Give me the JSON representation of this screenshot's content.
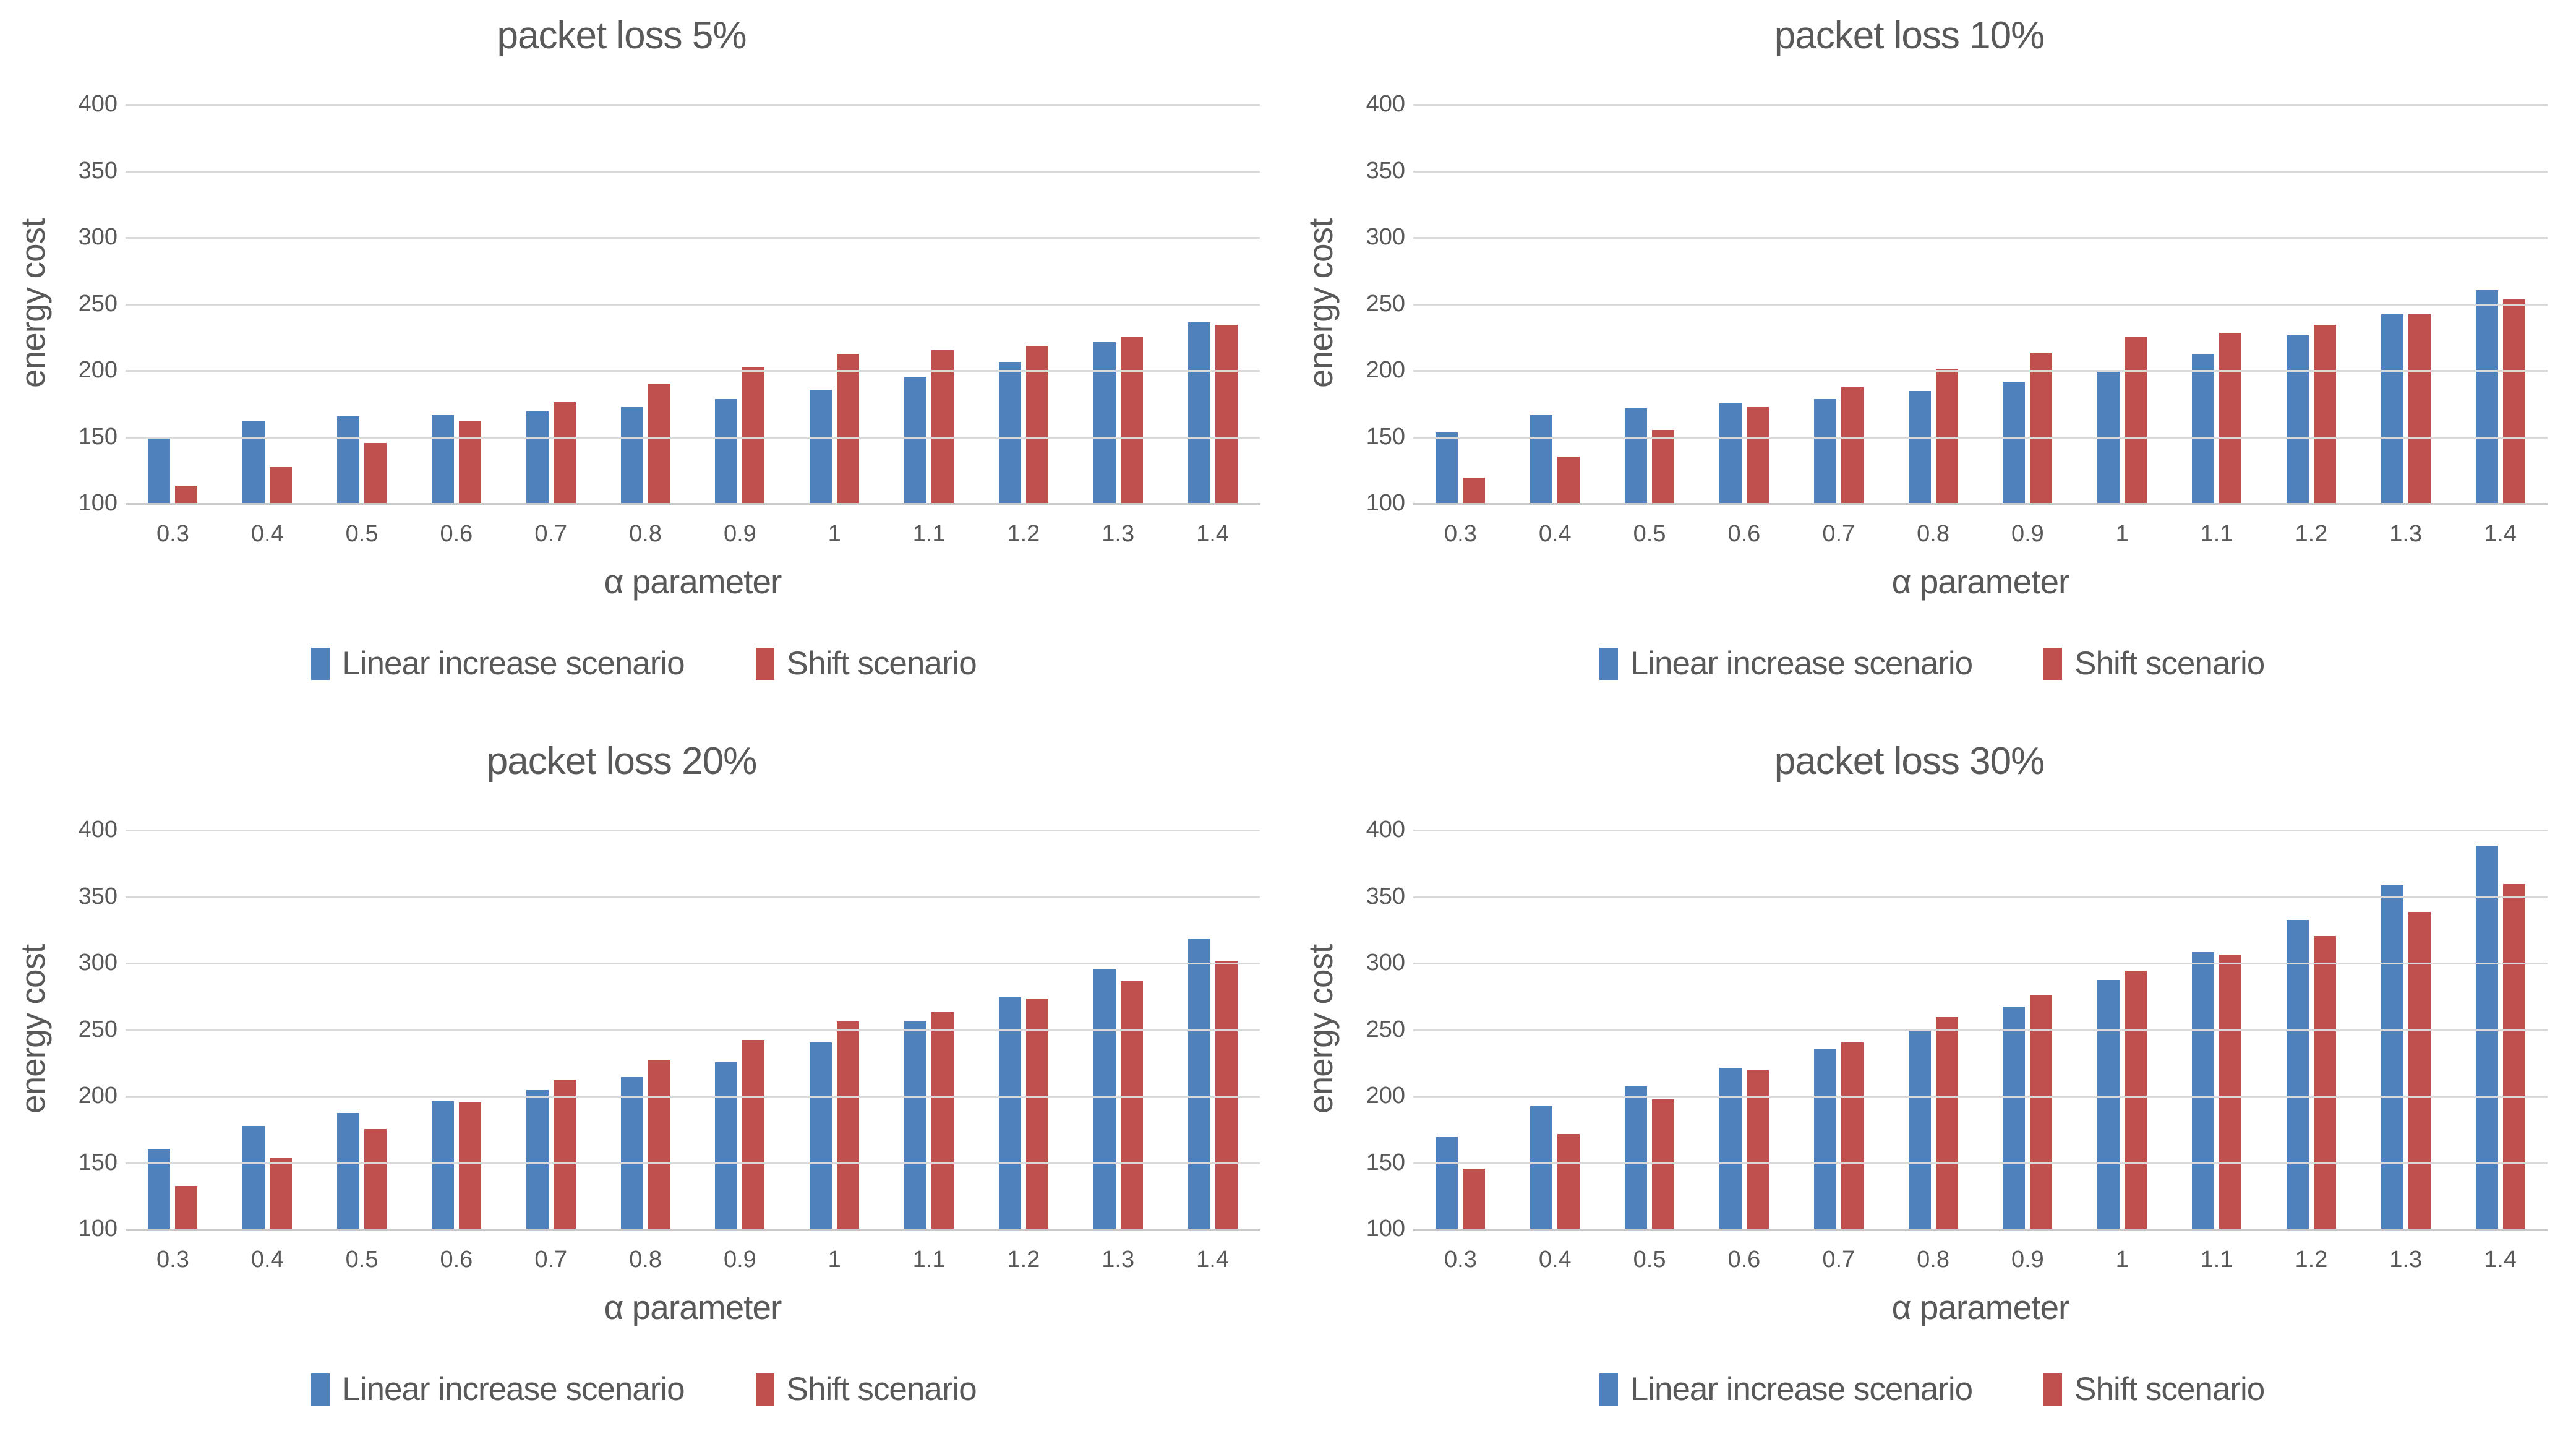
{
  "page": {
    "background": "#FFFFFF"
  },
  "styles": {
    "text_color": "#595959",
    "gridline_color": "#D9D9D9",
    "baseline_color": "#C9C9C9",
    "series1_color": "#4F81BD",
    "series2_color": "#C0504D"
  },
  "legend": {
    "series1_label": "Linear increase scenario",
    "series2_label": "Shift scenario"
  },
  "chart_data": [
    {
      "type": "bar",
      "title": "packet loss 5%",
      "xlabel": "α parameter",
      "ylabel": "energy cost",
      "ylim": [
        100,
        400
      ],
      "yticks": [
        400,
        350,
        300,
        250,
        200,
        150,
        100
      ],
      "grid": true,
      "legend_position": "bottom",
      "categories": [
        "0.3",
        "0.4",
        "0.5",
        "0.6",
        "0.7",
        "0.8",
        "0.9",
        "1",
        "1.1",
        "1.2",
        "1.3",
        "1.4"
      ],
      "series": [
        {
          "name": "Linear increase scenario",
          "color": "#4F81BD",
          "values": [
            150,
            162,
            165,
            166,
            169,
            172,
            178,
            185,
            195,
            206,
            221,
            236
          ]
        },
        {
          "name": "Shift scenario",
          "color": "#C0504D",
          "values": [
            113,
            127,
            145,
            162,
            176,
            190,
            202,
            212,
            215,
            218,
            225,
            234
          ]
        }
      ]
    },
    {
      "type": "bar",
      "title": "packet loss 10%",
      "xlabel": "α parameter",
      "ylabel": "energy cost",
      "ylim": [
        100,
        400
      ],
      "yticks": [
        400,
        350,
        300,
        250,
        200,
        150,
        100
      ],
      "grid": true,
      "legend_position": "bottom",
      "categories": [
        "0.3",
        "0.4",
        "0.5",
        "0.6",
        "0.7",
        "0.8",
        "0.9",
        "1",
        "1.1",
        "1.2",
        "1.3",
        "1.4"
      ],
      "series": [
        {
          "name": "Linear increase scenario",
          "color": "#4F81BD",
          "values": [
            153,
            166,
            171,
            175,
            178,
            184,
            191,
            200,
            212,
            226,
            242,
            260
          ]
        },
        {
          "name": "Shift scenario",
          "color": "#C0504D",
          "values": [
            119,
            135,
            155,
            172,
            187,
            201,
            213,
            225,
            228,
            234,
            242,
            253
          ]
        }
      ]
    },
    {
      "type": "bar",
      "title": "packet loss 20%",
      "xlabel": "α parameter",
      "ylabel": "energy cost",
      "ylim": [
        100,
        400
      ],
      "yticks": [
        400,
        350,
        300,
        250,
        200,
        150,
        100
      ],
      "grid": true,
      "legend_position": "bottom",
      "categories": [
        "0.3",
        "0.4",
        "0.5",
        "0.6",
        "0.7",
        "0.8",
        "0.9",
        "1",
        "1.1",
        "1.2",
        "1.3",
        "1.4"
      ],
      "series": [
        {
          "name": "Linear increase scenario",
          "color": "#4F81BD",
          "values": [
            160,
            177,
            187,
            196,
            204,
            214,
            225,
            240,
            256,
            274,
            295,
            318
          ]
        },
        {
          "name": "Shift scenario",
          "color": "#C0504D",
          "values": [
            132,
            153,
            175,
            195,
            212,
            227,
            242,
            256,
            263,
            273,
            286,
            301
          ]
        }
      ]
    },
    {
      "type": "bar",
      "title": "packet loss 30%",
      "xlabel": "α parameter",
      "ylabel": "energy cost",
      "ylim": [
        100,
        400
      ],
      "yticks": [
        400,
        350,
        300,
        250,
        200,
        150,
        100
      ],
      "grid": true,
      "legend_position": "bottom",
      "categories": [
        "0.3",
        "0.4",
        "0.5",
        "0.6",
        "0.7",
        "0.8",
        "0.9",
        "1",
        "1.1",
        "1.2",
        "1.3",
        "1.4"
      ],
      "series": [
        {
          "name": "Linear increase scenario",
          "color": "#4F81BD",
          "values": [
            169,
            192,
            207,
            221,
            235,
            250,
            267,
            287,
            308,
            332,
            358,
            388
          ]
        },
        {
          "name": "Shift scenario",
          "color": "#C0504D",
          "values": [
            145,
            171,
            197,
            219,
            240,
            259,
            276,
            294,
            306,
            320,
            338,
            359
          ]
        }
      ]
    }
  ]
}
